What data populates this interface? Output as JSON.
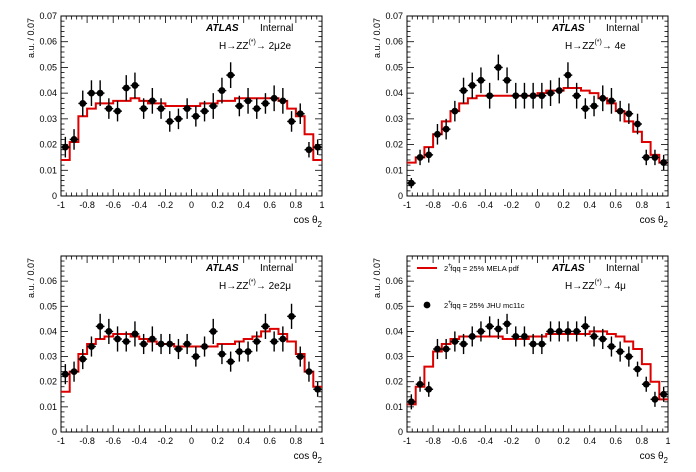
{
  "chart_data": [
    {
      "type": "step+scatter",
      "panel": "top-left",
      "xlabel": "cos θ",
      "xlabel_sub": "2",
      "ylabel": "a.u. / 0.07",
      "xlim": [
        -1,
        1
      ],
      "ylim": [
        0,
        0.07
      ],
      "xticks": [
        "-1",
        "-0.8",
        "-0.6",
        "-0.4",
        "-0.2",
        "0",
        "0.2",
        "0.4",
        "0.6",
        "0.8",
        "1"
      ],
      "yticks": [
        "0",
        "0.01",
        "0.02",
        "0.03",
        "0.04",
        "0.05",
        "0.06",
        "0.07"
      ],
      "atlas_label": "ATLAS",
      "status_label": "Internal",
      "channel_text": "H→ZZ",
      "channel_sup": "(*)",
      "channel_suffix": "→ 2μ2e",
      "series": [
        {
          "kind": "hist",
          "color": "#dd0000",
          "values": [
            0.014,
            0.021,
            0.031,
            0.034,
            0.036,
            0.036,
            0.037,
            0.037,
            0.038,
            0.037,
            0.036,
            0.036,
            0.035,
            0.035,
            0.035,
            0.035,
            0.036,
            0.036,
            0.037,
            0.037,
            0.038,
            0.038,
            0.038,
            0.038,
            0.038,
            0.037,
            0.034,
            0.031,
            0.024,
            0.014
          ]
        },
        {
          "kind": "points",
          "color": "#000000",
          "values": [
            0.019,
            0.022,
            0.036,
            0.04,
            0.04,
            0.034,
            0.033,
            0.042,
            0.043,
            0.034,
            0.037,
            0.034,
            0.029,
            0.03,
            0.034,
            0.031,
            0.033,
            0.035,
            0.041,
            0.047,
            0.035,
            0.037,
            0.034,
            0.036,
            0.038,
            0.037,
            0.029,
            0.032,
            0.018,
            0.019
          ],
          "errors": [
            0.004,
            0.004,
            0.005,
            0.005,
            0.005,
            0.004,
            0.004,
            0.005,
            0.005,
            0.004,
            0.005,
            0.004,
            0.004,
            0.004,
            0.004,
            0.004,
            0.004,
            0.005,
            0.005,
            0.005,
            0.004,
            0.005,
            0.004,
            0.004,
            0.005,
            0.005,
            0.004,
            0.004,
            0.003,
            0.003
          ]
        }
      ]
    },
    {
      "type": "step+scatter",
      "panel": "top-right",
      "xlabel": "cos θ",
      "xlabel_sub": "2",
      "ylabel": "a.u. / 0.07",
      "xlim": [
        -1,
        1
      ],
      "ylim": [
        0,
        0.07
      ],
      "xticks": [
        "-1",
        "-0.8",
        "-0.6",
        "-0.4",
        "-0.2",
        "0",
        "0.2",
        "0.4",
        "0.6",
        "0.8",
        "1"
      ],
      "yticks": [
        "0",
        "0.01",
        "0.02",
        "0.03",
        "0.04",
        "0.05",
        "0.06",
        "0.07"
      ],
      "atlas_label": "ATLAS",
      "status_label": "Internal",
      "channel_text": "H→ZZ",
      "channel_sup": "(*)",
      "channel_suffix": "→ 4e",
      "series": [
        {
          "kind": "hist",
          "color": "#dd0000",
          "values": [
            0.013,
            0.015,
            0.019,
            0.024,
            0.029,
            0.033,
            0.036,
            0.038,
            0.039,
            0.039,
            0.039,
            0.039,
            0.039,
            0.039,
            0.039,
            0.04,
            0.041,
            0.041,
            0.042,
            0.042,
            0.041,
            0.04,
            0.038,
            0.036,
            0.033,
            0.029,
            0.025,
            0.021,
            0.016,
            0.013
          ]
        },
        {
          "kind": "points",
          "color": "#000000",
          "values": [
            0.005,
            0.015,
            0.016,
            0.024,
            0.026,
            0.033,
            0.041,
            0.043,
            0.045,
            0.039,
            0.05,
            0.045,
            0.039,
            0.039,
            0.039,
            0.039,
            0.04,
            0.041,
            0.047,
            0.039,
            0.034,
            0.035,
            0.038,
            0.037,
            0.033,
            0.032,
            0.028,
            0.015,
            0.015,
            0.013
          ],
          "errors": [
            0.002,
            0.003,
            0.003,
            0.004,
            0.004,
            0.004,
            0.005,
            0.005,
            0.005,
            0.005,
            0.005,
            0.005,
            0.005,
            0.005,
            0.005,
            0.005,
            0.005,
            0.005,
            0.005,
            0.005,
            0.004,
            0.004,
            0.005,
            0.005,
            0.004,
            0.004,
            0.004,
            0.003,
            0.003,
            0.003
          ]
        }
      ]
    },
    {
      "type": "step+scatter",
      "panel": "bottom-left",
      "xlabel": "cos θ",
      "xlabel_sub": "2",
      "ylabel": "a.u. / 0.07",
      "xlim": [
        -1,
        1
      ],
      "ylim": [
        0,
        0.07
      ],
      "xticks": [
        "-1",
        "-0.8",
        "-0.6",
        "-0.4",
        "-0.2",
        "0",
        "0.2",
        "0.4",
        "0.6",
        "0.8",
        "1"
      ],
      "yticks": [
        "0",
        "0.01",
        "0.02",
        "0.03",
        "0.04",
        "0.05",
        "0.06"
      ],
      "atlas_label": "ATLAS",
      "status_label": "Internal",
      "channel_text": "H→ZZ",
      "channel_sup": "(*)",
      "channel_suffix": "→ 2e2μ",
      "series": [
        {
          "kind": "hist",
          "color": "#dd0000",
          "values": [
            0.016,
            0.024,
            0.031,
            0.035,
            0.037,
            0.038,
            0.039,
            0.039,
            0.038,
            0.037,
            0.036,
            0.035,
            0.035,
            0.034,
            0.034,
            0.034,
            0.034,
            0.034,
            0.035,
            0.035,
            0.036,
            0.037,
            0.038,
            0.04,
            0.041,
            0.039,
            0.036,
            0.031,
            0.024,
            0.018
          ]
        },
        {
          "kind": "points",
          "color": "#000000",
          "values": [
            0.023,
            0.024,
            0.029,
            0.034,
            0.042,
            0.04,
            0.037,
            0.036,
            0.039,
            0.035,
            0.037,
            0.035,
            0.035,
            0.033,
            0.035,
            0.03,
            0.034,
            0.04,
            0.031,
            0.028,
            0.032,
            0.032,
            0.036,
            0.042,
            0.036,
            0.037,
            0.046,
            0.03,
            0.024,
            0.017
          ],
          "errors": [
            0.004,
            0.004,
            0.004,
            0.004,
            0.005,
            0.005,
            0.005,
            0.004,
            0.005,
            0.004,
            0.005,
            0.004,
            0.004,
            0.004,
            0.004,
            0.004,
            0.004,
            0.005,
            0.004,
            0.004,
            0.004,
            0.004,
            0.004,
            0.005,
            0.004,
            0.005,
            0.005,
            0.004,
            0.004,
            0.003
          ]
        }
      ]
    },
    {
      "type": "step+scatter",
      "panel": "bottom-right",
      "xlabel": "cos θ",
      "xlabel_sub": "2",
      "ylabel": "a.u. / 0.07",
      "xlim": [
        -1,
        1
      ],
      "ylim": [
        0,
        0.07
      ],
      "xticks": [
        "-1",
        "-0.8",
        "-0.6",
        "-0.4",
        "-0.2",
        "0",
        "0.2",
        "0.4",
        "0.6",
        "0.8",
        "1"
      ],
      "yticks": [
        "0",
        "0.01",
        "0.02",
        "0.03",
        "0.04",
        "0.05",
        "0.06"
      ],
      "atlas_label": "ATLAS",
      "status_label": "Internal",
      "channel_text": "H→ZZ",
      "channel_sup": "(*)",
      "channel_suffix": "→ 4μ",
      "legend": {
        "placement": "top-left",
        "entries": [
          {
            "marker": "line",
            "text": "2  fqq = 25% MELA pdf",
            "sup": "+"
          },
          {
            "marker": "dot",
            "text": "2  fqq = 25% JHU mc11c",
            "sup": "+"
          }
        ]
      },
      "series": [
        {
          "kind": "hist",
          "color": "#dd0000",
          "values": [
            0.011,
            0.018,
            0.026,
            0.032,
            0.035,
            0.037,
            0.038,
            0.038,
            0.038,
            0.038,
            0.038,
            0.037,
            0.037,
            0.037,
            0.038,
            0.038,
            0.039,
            0.039,
            0.039,
            0.039,
            0.039,
            0.04,
            0.04,
            0.039,
            0.038,
            0.036,
            0.033,
            0.027,
            0.02,
            0.013
          ]
        },
        {
          "kind": "points",
          "color": "#000000",
          "values": [
            0.012,
            0.019,
            0.017,
            0.033,
            0.033,
            0.036,
            0.035,
            0.038,
            0.04,
            0.042,
            0.041,
            0.043,
            0.038,
            0.038,
            0.035,
            0.035,
            0.04,
            0.04,
            0.04,
            0.04,
            0.042,
            0.038,
            0.037,
            0.034,
            0.032,
            0.03,
            0.025,
            0.019,
            0.013,
            0.015
          ],
          "errors": [
            0.003,
            0.003,
            0.003,
            0.004,
            0.004,
            0.004,
            0.004,
            0.004,
            0.004,
            0.004,
            0.004,
            0.004,
            0.004,
            0.004,
            0.004,
            0.004,
            0.004,
            0.004,
            0.004,
            0.004,
            0.004,
            0.004,
            0.004,
            0.004,
            0.004,
            0.004,
            0.003,
            0.003,
            0.003,
            0.003
          ]
        }
      ]
    }
  ]
}
